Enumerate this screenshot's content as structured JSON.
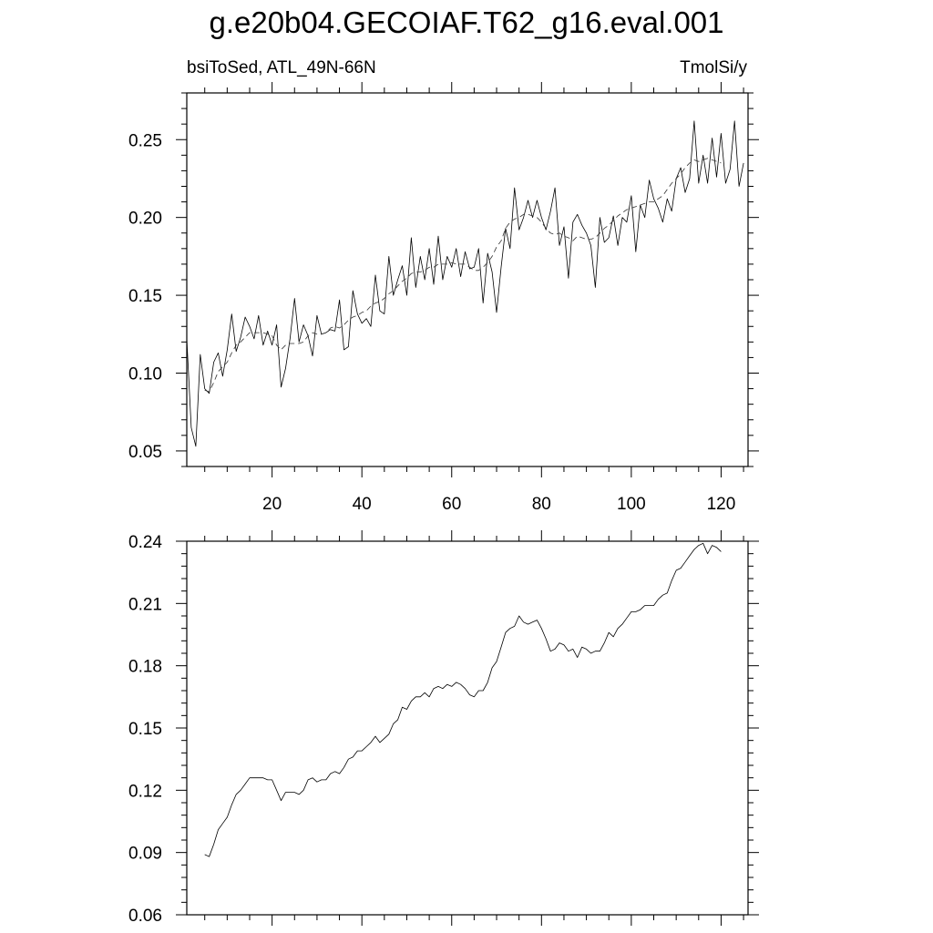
{
  "figure": {
    "title": "g.e20b04.GECOIAF.T62_g16.eval.001",
    "left_label": "bsiToSed, ATL_49N-66N",
    "right_label": "TmolSi/y"
  },
  "chart_data": [
    {
      "type": "line",
      "title": "g.e20b04.GECOIAF.T62_g16.eval.001",
      "subtitle_left": "bsiToSed, ATL_49N-66N",
      "subtitle_right": "TmolSi/y",
      "xlabel": "",
      "ylabel": "",
      "xlim": [
        1,
        126
      ],
      "ylim": [
        0.04,
        0.28
      ],
      "x_ticks": [
        20,
        40,
        60,
        80,
        100,
        120
      ],
      "y_ticks": [
        0.05,
        0.1,
        0.15,
        0.2,
        0.25
      ],
      "y_tick_labels": [
        "0.05",
        "0.10",
        "0.15",
        "0.20",
        "0.25"
      ],
      "x_tick_labels": [
        "20",
        "40",
        "60",
        "80",
        "100",
        "120"
      ],
      "grid": false,
      "series": [
        {
          "style": "solid",
          "x_start": 1,
          "values": [
            0.122,
            0.065,
            0.053,
            0.112,
            0.09,
            0.087,
            0.107,
            0.113,
            0.098,
            0.115,
            0.138,
            0.114,
            0.123,
            0.136,
            0.13,
            0.122,
            0.137,
            0.118,
            0.127,
            0.118,
            0.131,
            0.091,
            0.103,
            0.122,
            0.148,
            0.12,
            0.131,
            0.124,
            0.111,
            0.137,
            0.125,
            0.126,
            0.128,
            0.127,
            0.147,
            0.115,
            0.117,
            0.153,
            0.138,
            0.132,
            0.135,
            0.13,
            0.163,
            0.14,
            0.138,
            0.175,
            0.15,
            0.16,
            0.169,
            0.15,
            0.187,
            0.155,
            0.175,
            0.16,
            0.18,
            0.157,
            0.188,
            0.16,
            0.175,
            0.168,
            0.18,
            0.162,
            0.178,
            0.167,
            0.168,
            0.18,
            0.145,
            0.177,
            0.165,
            0.139,
            0.168,
            0.193,
            0.18,
            0.219,
            0.192,
            0.2,
            0.211,
            0.2,
            0.211,
            0.2,
            0.192,
            0.204,
            0.219,
            0.182,
            0.194,
            0.161,
            0.197,
            0.202,
            0.195,
            0.19,
            0.182,
            0.155,
            0.2,
            0.184,
            0.187,
            0.201,
            0.182,
            0.2,
            0.197,
            0.214,
            0.178,
            0.208,
            0.2,
            0.224,
            0.212,
            0.206,
            0.197,
            0.212,
            0.204,
            0.225,
            0.232,
            0.216,
            0.225,
            0.262,
            0.222,
            0.24,
            0.222,
            0.251,
            0.226,
            0.254,
            0.222,
            0.231,
            0.262,
            0.22,
            0.235
          ]
        },
        {
          "style": "dashed",
          "x_start": 5,
          "values": [
            0.089,
            0.088,
            0.094,
            0.101,
            0.104,
            0.107,
            0.113,
            0.118,
            0.12,
            0.123,
            0.126,
            0.126,
            0.126,
            0.126,
            0.125,
            0.124,
            0.118,
            0.115,
            0.118,
            0.119,
            0.119,
            0.119,
            0.12,
            0.124,
            0.126,
            0.125,
            0.125,
            0.126,
            0.129,
            0.13,
            0.129,
            0.131,
            0.134,
            0.136,
            0.137,
            0.139,
            0.14,
            0.143,
            0.145,
            0.146,
            0.148,
            0.151,
            0.153,
            0.156,
            0.159,
            0.161,
            0.164,
            0.165,
            0.165,
            0.166,
            0.168,
            0.168,
            0.17,
            0.17,
            0.17,
            0.171,
            0.17,
            0.17,
            0.17,
            0.168,
            0.166,
            0.166,
            0.168,
            0.171,
            0.175,
            0.181,
            0.185,
            0.193,
            0.197,
            0.199,
            0.2,
            0.202,
            0.202,
            0.201,
            0.2,
            0.197,
            0.193,
            0.19,
            0.189,
            0.19,
            0.188,
            0.187,
            0.185,
            0.188,
            0.187,
            0.186,
            0.186,
            0.187,
            0.19,
            0.193,
            0.195,
            0.198,
            0.201,
            0.203,
            0.205,
            0.206,
            0.207,
            0.208,
            0.209,
            0.21,
            0.21,
            0.212,
            0.214,
            0.218,
            0.222,
            0.225,
            0.228,
            0.232,
            0.235,
            0.237,
            0.236,
            0.237,
            0.238,
            0.237,
            0.236,
            0.235
          ]
        }
      ]
    },
    {
      "type": "line",
      "xlabel": "",
      "ylabel": "",
      "xlim": [
        1,
        126
      ],
      "ylim": [
        0.06,
        0.24
      ],
      "y_ticks": [
        0.06,
        0.09,
        0.12,
        0.15,
        0.18,
        0.21,
        0.24
      ],
      "y_tick_labels": [
        "0.06",
        "0.09",
        "0.12",
        "0.15",
        "0.18",
        "0.21",
        "0.24"
      ],
      "x_ticks": [
        20,
        40,
        60,
        80,
        100,
        120
      ],
      "grid": false,
      "series": [
        {
          "style": "solid",
          "x_start": 5,
          "values": [
            0.089,
            0.088,
            0.094,
            0.101,
            0.104,
            0.107,
            0.113,
            0.118,
            0.12,
            0.123,
            0.126,
            0.126,
            0.126,
            0.126,
            0.125,
            0.125,
            0.12,
            0.115,
            0.119,
            0.119,
            0.119,
            0.118,
            0.12,
            0.125,
            0.126,
            0.124,
            0.125,
            0.125,
            0.128,
            0.129,
            0.128,
            0.131,
            0.135,
            0.136,
            0.139,
            0.139,
            0.141,
            0.143,
            0.146,
            0.143,
            0.145,
            0.147,
            0.152,
            0.154,
            0.16,
            0.159,
            0.163,
            0.165,
            0.165,
            0.167,
            0.165,
            0.169,
            0.17,
            0.169,
            0.171,
            0.17,
            0.172,
            0.171,
            0.169,
            0.166,
            0.165,
            0.168,
            0.168,
            0.172,
            0.179,
            0.182,
            0.189,
            0.196,
            0.198,
            0.199,
            0.204,
            0.201,
            0.2,
            0.201,
            0.202,
            0.198,
            0.193,
            0.187,
            0.188,
            0.191,
            0.19,
            0.187,
            0.188,
            0.184,
            0.189,
            0.188,
            0.186,
            0.187,
            0.187,
            0.191,
            0.196,
            0.194,
            0.198,
            0.2,
            0.203,
            0.206,
            0.206,
            0.207,
            0.209,
            0.209,
            0.209,
            0.212,
            0.214,
            0.215,
            0.221,
            0.226,
            0.227,
            0.23,
            0.233,
            0.236,
            0.238,
            0.239,
            0.234,
            0.238,
            0.237,
            0.235
          ]
        }
      ]
    }
  ]
}
